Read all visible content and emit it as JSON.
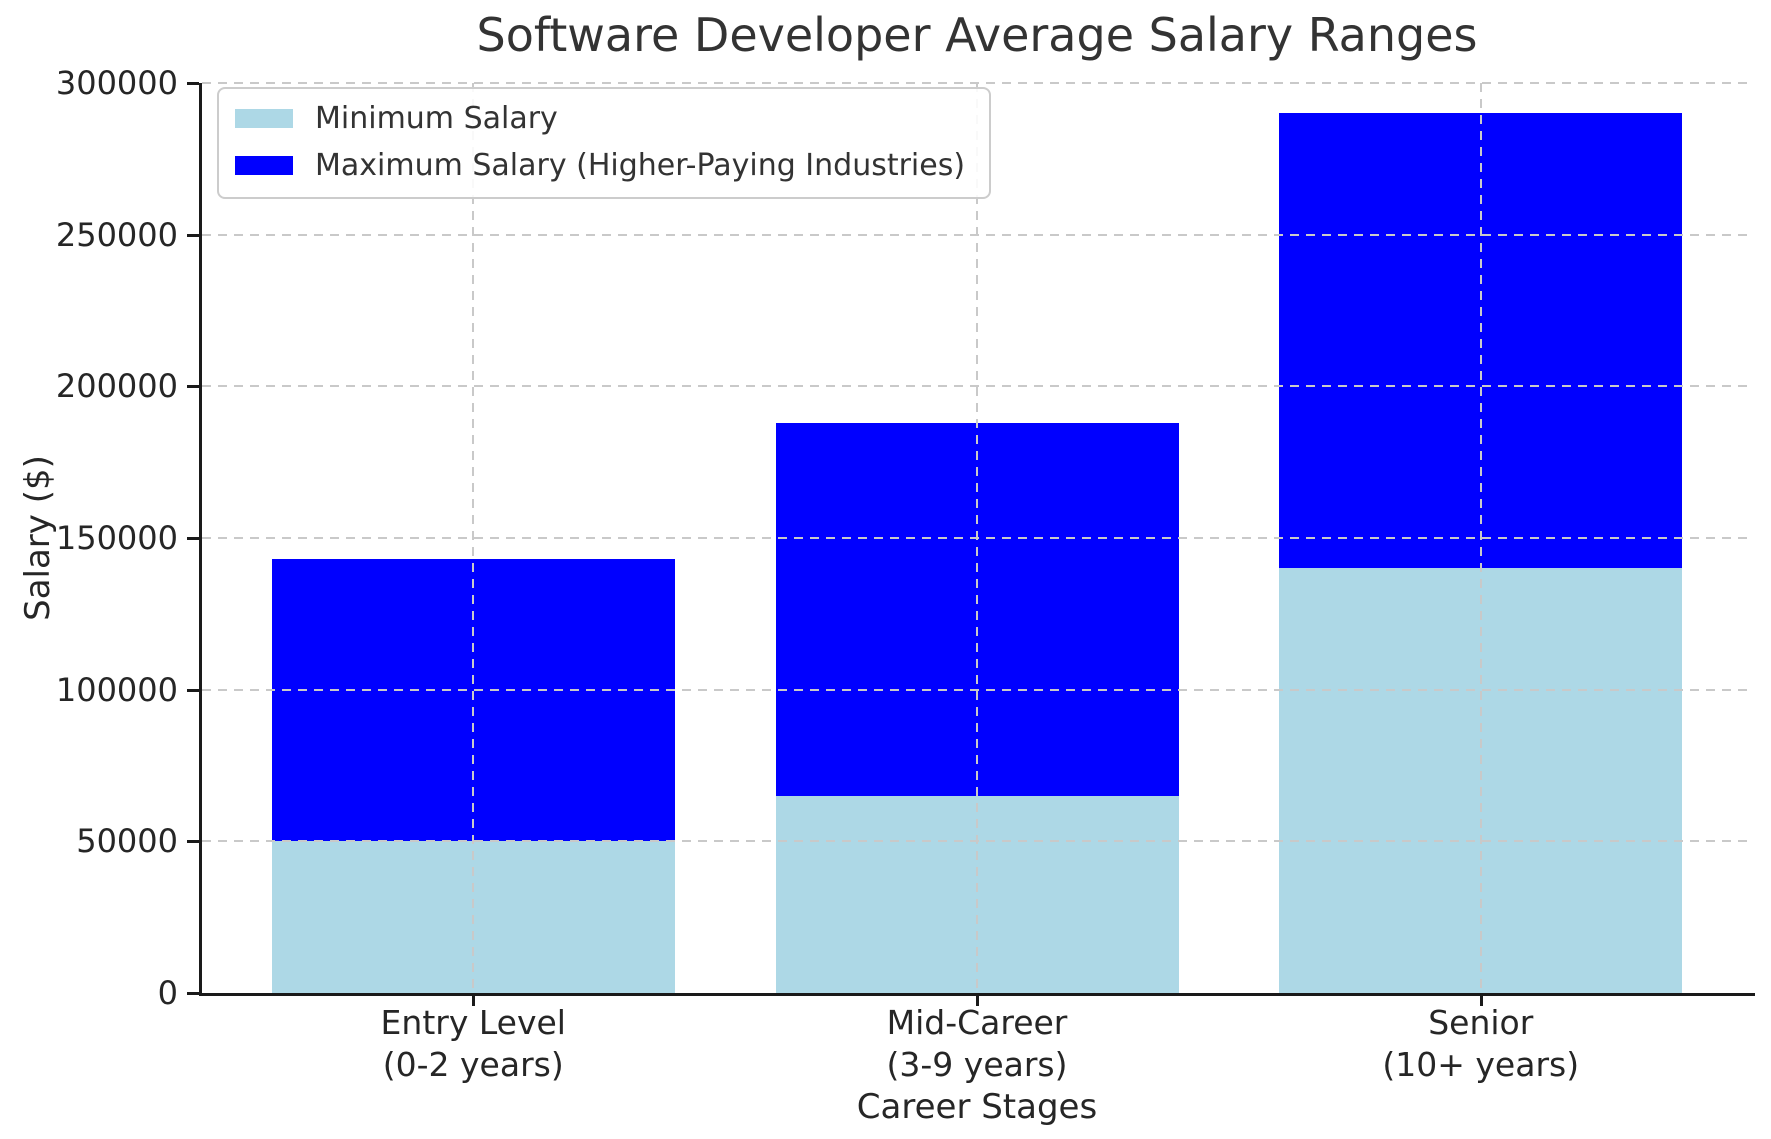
{
  "title": "Software Developer Average Salary Ranges",
  "chart_data": {
    "type": "bar",
    "stacked": true,
    "title": "Software Developer Average Salary Ranges",
    "xlabel": "Career Stages",
    "ylabel": "Salary ($)",
    "ylim": [
      0,
      300000
    ],
    "yticks": [
      0,
      50000,
      100000,
      150000,
      200000,
      250000,
      300000
    ],
    "grid": "dashed, both axes, drawn above bars",
    "legend_position": "upper left",
    "background_color": "#ffffff",
    "categories": [
      "Entry Level\n(0-2 years)",
      "Mid-Career\n(3-9 years)",
      "Senior\n(10+ years)"
    ],
    "series": [
      {
        "name": "Minimum Salary",
        "color": "#ADD8E6",
        "values": [
          50000,
          65000,
          140000
        ]
      },
      {
        "name": "Maximum Salary (Higher-Paying Industries)",
        "color": "#0000FF",
        "values": [
          143000,
          188000,
          290000
        ]
      }
    ]
  }
}
